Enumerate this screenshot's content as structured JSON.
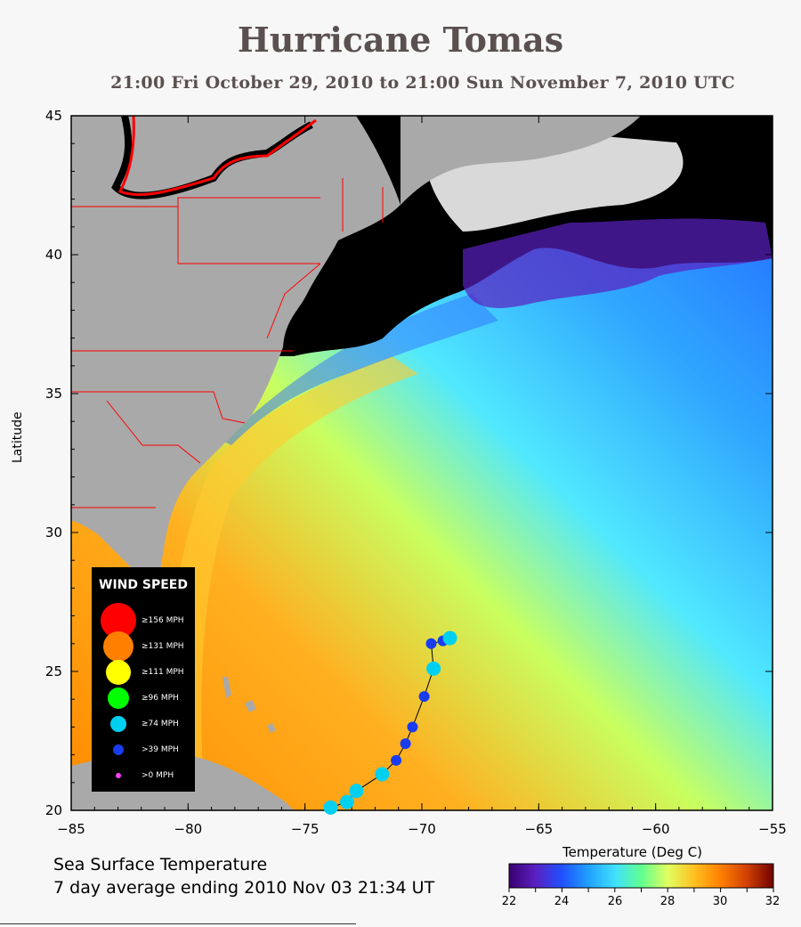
{
  "title": "Hurricane Tomas",
  "subtitle": "21:00 Fri October 29, 2010 to 21:00 Sun November  7, 2010  UTC",
  "y_axis_label": "Latitude",
  "map": {
    "lon_range": [
      -85,
      -55
    ],
    "lat_range": [
      20,
      45
    ],
    "lon_ticks": [
      "−85",
      "−80",
      "−75",
      "−70",
      "−65",
      "−60",
      "−55"
    ],
    "lat_ticks": [
      "45",
      "40",
      "35",
      "30",
      "25",
      "20"
    ],
    "land_color": "#a9a9a9",
    "cloud_color": "#000000"
  },
  "legend": {
    "title": "WIND SPEED",
    "items": [
      {
        "label": "≥156 MPH",
        "color": "#ff0000"
      },
      {
        "label": "≥131 MPH",
        "color": "#ff7f00"
      },
      {
        "label": "≥111 MPH",
        "color": "#ffff00"
      },
      {
        "label": "≥96 MPH",
        "color": "#00ff00"
      },
      {
        "label": "≥74 MPH",
        "color": "#00d0f0"
      },
      {
        "label": ">39 MPH",
        "color": "#1a3cf0"
      },
      {
        "label": ">0 MPH",
        "color": "#ff40ff"
      }
    ]
  },
  "track": [
    {
      "lon": -73.9,
      "lat": 20.1,
      "category": "≥74 MPH"
    },
    {
      "lon": -73.2,
      "lat": 20.3,
      "category": "≥74 MPH"
    },
    {
      "lon": -72.8,
      "lat": 20.7,
      "category": "≥74 MPH"
    },
    {
      "lon": -71.7,
      "lat": 21.3,
      "category": "≥74 MPH"
    },
    {
      "lon": -71.1,
      "lat": 21.8,
      "category": ">39 MPH"
    },
    {
      "lon": -70.7,
      "lat": 22.4,
      "category": ">39 MPH"
    },
    {
      "lon": -70.4,
      "lat": 23.0,
      "category": ">39 MPH"
    },
    {
      "lon": -69.9,
      "lat": 24.1,
      "category": ">39 MPH"
    },
    {
      "lon": -69.5,
      "lat": 25.1,
      "category": "≥74 MPH"
    },
    {
      "lon": -69.6,
      "lat": 26.0,
      "category": ">39 MPH"
    },
    {
      "lon": -69.1,
      "lat": 26.1,
      "category": ">39 MPH"
    },
    {
      "lon": -68.8,
      "lat": 26.2,
      "category": "≥74 MPH"
    }
  ],
  "caption": {
    "line1": "Sea Surface Temperature",
    "line2": "7 day average ending 2010 Nov 03 21:34 UT"
  },
  "colorbar": {
    "label": "Temperature (Deg C)",
    "range": [
      22,
      32
    ],
    "ticks": [
      "22",
      "24",
      "26",
      "28",
      "30",
      "32"
    ],
    "colors": [
      "#3a0070",
      "#5a20c0",
      "#2050ff",
      "#20a0ff",
      "#40e0ff",
      "#60ff90",
      "#e0ff60",
      "#ffc020",
      "#ff8000",
      "#d04000",
      "#700000"
    ]
  }
}
